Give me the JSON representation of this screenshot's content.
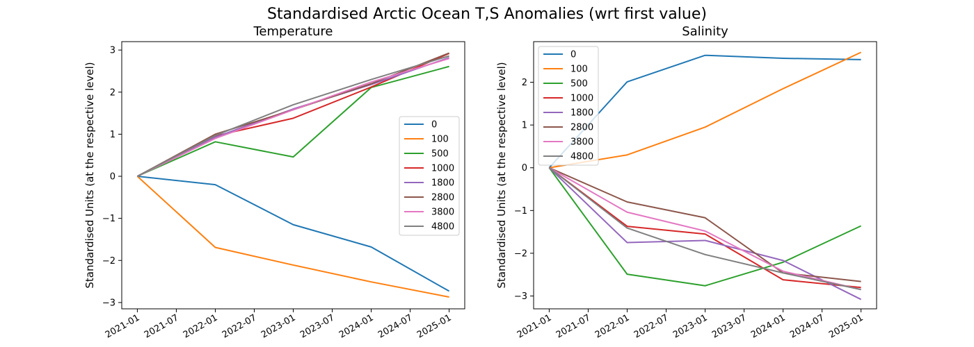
{
  "figure": {
    "suptitle": "Standardised Arctic Ocean T,S Anomalies (wrt first value)"
  },
  "chart_data": [
    {
      "type": "line",
      "title": "Temperature",
      "xlabel": "",
      "ylabel": "Standardised Units (at the respective level)",
      "x": [
        "2021-01",
        "2022-01",
        "2023-01",
        "2024-01",
        "2025-01"
      ],
      "x_ticks": [
        "2021-01",
        "2021-07",
        "2022-01",
        "2022-07",
        "2023-01",
        "2023-07",
        "2024-01",
        "2024-07",
        "2025-01"
      ],
      "ylim": [
        -3.15,
        3.2
      ],
      "y_ticks": [
        -3,
        -2,
        -1,
        0,
        1,
        2,
        3
      ],
      "y_tick_labels": [
        "−3",
        "−2",
        "−1",
        "0",
        "1",
        "2",
        "3"
      ],
      "legend_position": "center-right",
      "grid": false,
      "series": [
        {
          "name": "0",
          "color": "#1f77b4",
          "values": [
            0,
            -0.2,
            -1.15,
            -1.68,
            -2.73
          ]
        },
        {
          "name": "100",
          "color": "#ff7f0e",
          "values": [
            0,
            -1.69,
            -2.11,
            -2.51,
            -2.87
          ]
        },
        {
          "name": "500",
          "color": "#2ca02c",
          "values": [
            0,
            0.82,
            0.46,
            2.11,
            2.61
          ]
        },
        {
          "name": "1000",
          "color": "#d62728",
          "values": [
            0,
            0.96,
            1.38,
            2.12,
            2.92
          ]
        },
        {
          "name": "1800",
          "color": "#9467bd",
          "values": [
            0,
            0.93,
            1.6,
            2.18,
            2.82
          ]
        },
        {
          "name": "2800",
          "color": "#8c564b",
          "values": [
            0,
            1.0,
            1.58,
            2.2,
            2.93
          ]
        },
        {
          "name": "3800",
          "color": "#e377c2",
          "values": [
            0,
            0.9,
            1.58,
            2.24,
            2.8
          ]
        },
        {
          "name": "4800",
          "color": "#7f7f7f",
          "values": [
            0,
            0.97,
            1.7,
            2.3,
            2.86
          ]
        }
      ]
    },
    {
      "type": "line",
      "title": "Salinity",
      "xlabel": "",
      "ylabel": "Standardised Units (at the respective level)",
      "x": [
        "2021-01",
        "2022-01",
        "2023-01",
        "2024-01",
        "2025-01"
      ],
      "x_ticks": [
        "2021-01",
        "2021-07",
        "2022-01",
        "2022-07",
        "2023-01",
        "2023-07",
        "2024-01",
        "2024-07",
        "2025-01"
      ],
      "ylim": [
        -3.3,
        2.95
      ],
      "y_ticks": [
        -3,
        -2,
        -1,
        0,
        1,
        2
      ],
      "y_tick_labels": [
        "−3",
        "−2",
        "−1",
        "0",
        "1",
        "2"
      ],
      "legend_position": "top-left",
      "grid": false,
      "series": [
        {
          "name": "0",
          "color": "#1f77b4",
          "values": [
            0,
            2.01,
            2.63,
            2.56,
            2.53
          ]
        },
        {
          "name": "100",
          "color": "#ff7f0e",
          "values": [
            0,
            0.3,
            0.95,
            1.85,
            2.7
          ]
        },
        {
          "name": "500",
          "color": "#2ca02c",
          "values": [
            0,
            -2.49,
            -2.76,
            -2.21,
            -1.36
          ]
        },
        {
          "name": "1000",
          "color": "#d62728",
          "values": [
            0,
            -1.37,
            -1.55,
            -2.62,
            -2.8
          ]
        },
        {
          "name": "1800",
          "color": "#9467bd",
          "values": [
            0,
            -1.75,
            -1.7,
            -2.17,
            -3.08
          ]
        },
        {
          "name": "2800",
          "color": "#8c564b",
          "values": [
            0,
            -0.8,
            -1.17,
            -2.46,
            -2.66
          ]
        },
        {
          "name": "3800",
          "color": "#e377c2",
          "values": [
            0,
            -1.04,
            -1.48,
            -2.42,
            -2.85
          ]
        },
        {
          "name": "4800",
          "color": "#7f7f7f",
          "values": [
            0,
            -1.41,
            -2.03,
            -2.46,
            -2.85
          ]
        }
      ]
    }
  ]
}
